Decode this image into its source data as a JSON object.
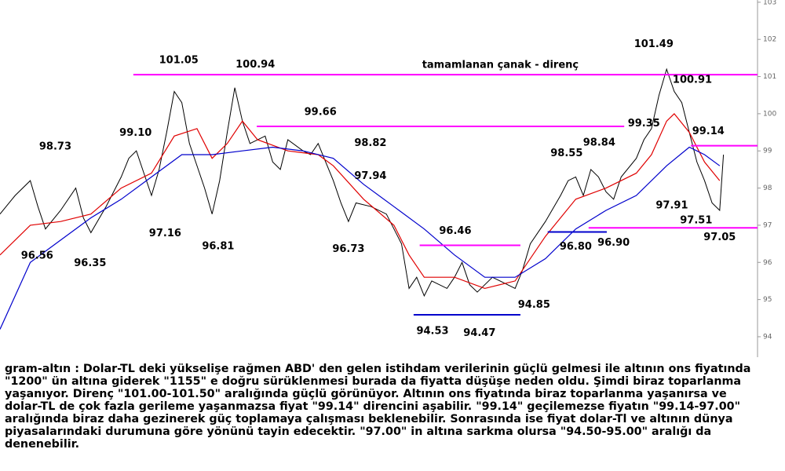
{
  "chart_data": {
    "type": "line",
    "xlim": [
      0,
      100
    ],
    "ylim": [
      93.45,
      103.06
    ],
    "yticks": [
      94,
      95,
      96,
      97,
      98,
      99,
      100,
      101,
      102,
      103
    ],
    "series": [
      {
        "name": "price",
        "color": "#000000",
        "x": [
          0,
          2,
          4,
          5,
          6,
          8,
          10,
          11,
          12,
          14,
          16,
          17,
          18,
          19,
          20,
          21,
          22,
          23,
          24,
          25,
          27,
          28,
          29,
          30,
          31,
          32,
          33,
          35,
          36,
          37,
          38,
          40,
          41,
          42,
          43,
          44,
          45,
          46,
          47,
          49,
          51,
          53,
          54,
          55,
          56,
          57,
          59,
          60,
          61,
          62,
          63,
          65,
          67,
          68,
          69,
          70,
          72,
          74,
          75,
          76,
          77,
          78,
          79,
          80,
          81,
          82,
          84,
          85,
          86,
          87,
          88,
          89,
          90,
          91,
          92,
          93,
          94,
          95,
          95.5
        ],
        "values": [
          97.3,
          97.8,
          98.2,
          97.5,
          96.9,
          97.4,
          98.0,
          97.2,
          96.8,
          97.5,
          98.3,
          98.8,
          99.0,
          98.4,
          97.8,
          98.5,
          99.5,
          100.6,
          100.3,
          99.2,
          98.0,
          97.3,
          98.2,
          99.5,
          100.7,
          99.8,
          99.2,
          99.4,
          98.7,
          98.5,
          99.3,
          99.0,
          98.9,
          99.2,
          98.7,
          98.2,
          97.6,
          97.1,
          97.6,
          97.5,
          97.3,
          96.5,
          95.3,
          95.6,
          95.1,
          95.5,
          95.3,
          95.6,
          96.0,
          95.4,
          95.2,
          95.6,
          95.4,
          95.3,
          95.8,
          96.5,
          97.1,
          97.8,
          98.2,
          98.3,
          97.8,
          98.5,
          98.3,
          97.9,
          97.7,
          98.3,
          98.8,
          99.3,
          99.6,
          100.5,
          101.2,
          100.6,
          100.3,
          99.5,
          98.7,
          98.2,
          97.6,
          97.4,
          98.9
        ]
      },
      {
        "name": "ma-fast",
        "color": "#e00000",
        "x": [
          0,
          4,
          8,
          12,
          16,
          20,
          23,
          26,
          28,
          30,
          32,
          34,
          38,
          42,
          44,
          48,
          52,
          54,
          56,
          60,
          64,
          68,
          72,
          76,
          80,
          84,
          86,
          88,
          89,
          91,
          93,
          95
        ],
        "values": [
          96.2,
          97.0,
          97.1,
          97.3,
          98.0,
          98.4,
          99.4,
          99.6,
          98.8,
          99.2,
          99.8,
          99.3,
          99.0,
          98.9,
          98.6,
          97.7,
          97.0,
          96.2,
          95.6,
          95.6,
          95.3,
          95.5,
          96.7,
          97.7,
          98.0,
          98.4,
          98.9,
          99.8,
          100.0,
          99.5,
          98.7,
          98.2
        ]
      },
      {
        "name": "ma-slow",
        "color": "#0000cc",
        "x": [
          0,
          4,
          8,
          12,
          16,
          20,
          24,
          28,
          32,
          36,
          40,
          44,
          48,
          52,
          56,
          60,
          64,
          68,
          72,
          76,
          80,
          84,
          88,
          91,
          93,
          95
        ],
        "values": [
          94.2,
          96.0,
          96.6,
          97.2,
          97.7,
          98.3,
          98.9,
          98.9,
          99.0,
          99.1,
          99.0,
          98.8,
          98.1,
          97.5,
          96.9,
          96.2,
          95.6,
          95.6,
          96.1,
          96.9,
          97.4,
          97.8,
          98.6,
          99.1,
          98.9,
          98.6
        ]
      }
    ],
    "levels": [
      {
        "value": 101.05,
        "x": [
          17.6,
          100
        ],
        "color": "#ff00ff",
        "label": "tamamlanan çanak - direnç"
      },
      {
        "value": 99.66,
        "x": [
          33.9,
          82.4
        ],
        "color": "#ff00ff"
      },
      {
        "value": 99.14,
        "x": [
          91.2,
          100
        ],
        "color": "#ff00ff"
      },
      {
        "value": 96.46,
        "x": [
          55.4,
          68.7
        ],
        "color": "#ff00ff"
      },
      {
        "value": 96.93,
        "x": [
          77.7,
          100
        ],
        "color": "#ff00ff"
      },
      {
        "value": 94.59,
        "x": [
          54.6,
          68.7
        ],
        "color": "#0000cc"
      },
      {
        "value": 96.82,
        "x": [
          72.3,
          80.1
        ],
        "color": "#0000cc"
      }
    ],
    "annotations": [
      {
        "label": "98.73",
        "value": 98.73,
        "x": 7.3,
        "side": "above"
      },
      {
        "label": "99.10",
        "value": 99.1,
        "x": 17.9,
        "side": "above"
      },
      {
        "label": "101.05",
        "value": 101.05,
        "x": 23.6,
        "side": "above"
      },
      {
        "label": "100.94",
        "value": 100.94,
        "x": 33.7,
        "side": "above"
      },
      {
        "label": "99.66",
        "value": 99.66,
        "x": 42.3,
        "side": "above"
      },
      {
        "label": "98.82",
        "value": 98.82,
        "x": 48.9,
        "side": "above"
      },
      {
        "label": "97.94",
        "value": 97.94,
        "x": 48.9,
        "side": "above"
      },
      {
        "label": "96.56",
        "value": 96.56,
        "x": 4.9,
        "side": "below"
      },
      {
        "label": "96.35",
        "value": 96.35,
        "x": 11.9,
        "side": "below"
      },
      {
        "label": "97.16",
        "value": 97.16,
        "x": 21.8,
        "side": "below"
      },
      {
        "label": "96.81",
        "value": 96.81,
        "x": 28.8,
        "side": "below"
      },
      {
        "label": "96.73",
        "value": 96.73,
        "x": 46,
        "side": "below"
      },
      {
        "label": "96.46",
        "value": 96.46,
        "x": 60.1,
        "side": "above"
      },
      {
        "label": "94.53",
        "value": 94.53,
        "x": 57.1,
        "side": "below"
      },
      {
        "label": "94.47",
        "value": 94.47,
        "x": 63.3,
        "side": "below"
      },
      {
        "label": "94.85",
        "value": 94.85,
        "x": 70.5,
        "side": "middle"
      },
      {
        "label": "98.55",
        "value": 98.55,
        "x": 74.8,
        "side": "above"
      },
      {
        "label": "98.84",
        "value": 98.84,
        "x": 79.1,
        "side": "above"
      },
      {
        "label": "99.35",
        "value": 99.35,
        "x": 85,
        "side": "above"
      },
      {
        "label": "101.49",
        "value": 101.49,
        "x": 86.3,
        "side": "above"
      },
      {
        "label": "100.91",
        "value": 100.91,
        "x": 91.4,
        "side": "middle"
      },
      {
        "label": "99.14",
        "value": 99.14,
        "x": 93.5,
        "side": "above"
      },
      {
        "label": "97.91",
        "value": 97.91,
        "x": 88.7,
        "side": "below"
      },
      {
        "label": "97.51",
        "value": 97.51,
        "x": 91.9,
        "side": "below"
      },
      {
        "label": "96.80",
        "value": 96.8,
        "x": 76,
        "side": "below"
      },
      {
        "label": "96.90",
        "value": 96.9,
        "x": 81,
        "side": "below"
      },
      {
        "label": "97.05",
        "value": 97.05,
        "x": 95,
        "side": "below"
      }
    ]
  },
  "commentary": {
    "lines": [
      "gram-altın : Dolar-TL deki yükselişe rağmen ABD' den gelen istihdam verilerinin güçlü gelmesi ile altının ons fiyatında",
      "\"1200\" ün altına giderek \"1155\" e doğru sürüklenmesi burada da fiyatta düşüşe neden oldu. Şimdi biraz toparlanma",
      "yaşanıyor. Direnç \"101.00-101.50\" aralığında güçlü görünüyor. Altının ons fiyatında biraz toparlanma yaşanırsa ve",
      "dolar-TL de çok fazla gerileme yaşanmazsa fiyat \"99.14\" direncini aşabilir. \"99.14\" geçilemezse fiyatın \"99.14-97.00\"",
      "aralığında biraz daha gezinerek güç toplamaya çalışması beklenebilir. Sonrasında ise fiyat dolar-Tl ve altının dünya",
      "piyasalarındaki durumuna göre yönünü tayin edecektir. \"97.00\" in altına sarkma olursa \"94.50-95.00\" aralığı da",
      "denenebilir."
    ]
  }
}
